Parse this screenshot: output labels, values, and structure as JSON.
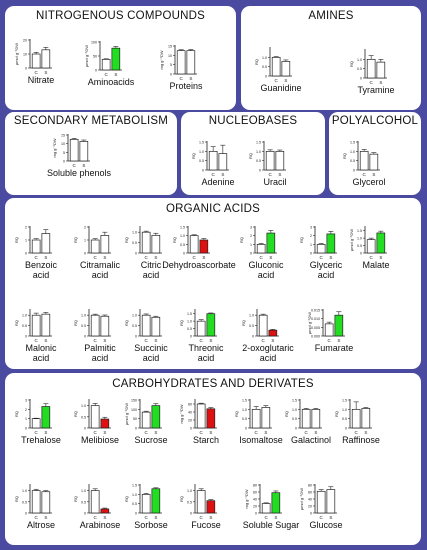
{
  "sections": [
    {
      "id": "nitro",
      "title": "NITROGENOUS COMPOUNDS"
    },
    {
      "id": "amines",
      "title": "AMINES"
    },
    {
      "id": "secondary",
      "title": "SECONDARY METABOLISM"
    },
    {
      "id": "nucleo",
      "title": "NUCLEOBASES"
    },
    {
      "id": "polyal",
      "title": "POLYALCOHOL"
    },
    {
      "id": "organic",
      "title": "ORGANIC ACIDS"
    },
    {
      "id": "carbo",
      "title": "CARBOHYDRATES AND DERIVATES"
    }
  ],
  "colors": {
    "control": "#ffffff",
    "increase": "#22dd22",
    "decrease": "#dd1111",
    "background": "#4a4aa0"
  },
  "chart_data": [
    {
      "type": "bar",
      "title": "Nitrate",
      "ylabel": "μmol g⁻¹DW",
      "categories": [
        "C",
        "S"
      ],
      "values": [
        10,
        13
      ],
      "errors": [
        1.2,
        1.8
      ],
      "colors": [
        "control",
        "control"
      ],
      "yticks": [
        "0",
        "10",
        "20"
      ],
      "ylim": [
        0,
        20
      ],
      "section": "nitro"
    },
    {
      "type": "bar",
      "title": "Aminoacids",
      "ylabel": "μmol g⁻¹DW",
      "categories": [
        "C",
        "S"
      ],
      "values": [
        38,
        78
      ],
      "errors": [
        2,
        6
      ],
      "colors": [
        "control",
        "increase"
      ],
      "yticks": [
        "0",
        "50",
        "100"
      ],
      "ylim": [
        0,
        100
      ],
      "section": "nitro"
    },
    {
      "type": "bar",
      "title": "Proteins",
      "ylabel": "mg g⁻¹DW",
      "categories": [
        "C",
        "S"
      ],
      "values": [
        12.5,
        12.5
      ],
      "errors": [
        0.5,
        0.6
      ],
      "colors": [
        "control",
        "control"
      ],
      "yticks": [
        "0",
        "5",
        "10",
        "15"
      ],
      "ylim": [
        0,
        15
      ],
      "section": "nitro"
    },
    {
      "type": "bar",
      "title": "Guanidine",
      "ylabel": "RQ",
      "categories": [
        "C",
        "S"
      ],
      "values": [
        1.0,
        0.78
      ],
      "errors": [
        0.04,
        0.08
      ],
      "colors": [
        "control",
        "control"
      ],
      "yticks": [
        "0",
        "0.5",
        "1.0"
      ],
      "ylim": [
        0,
        1.5
      ],
      "section": "amines"
    },
    {
      "type": "bar",
      "title": "Tyramine",
      "ylabel": "RQ",
      "categories": [
        "C",
        "S"
      ],
      "values": [
        1.0,
        0.85
      ],
      "errors": [
        0.2,
        0.15
      ],
      "colors": [
        "control",
        "control"
      ],
      "yticks": [
        "0",
        "0.5",
        "1.0"
      ],
      "ylim": [
        0,
        1.5
      ],
      "section": "amines"
    },
    {
      "type": "bar",
      "title": "Soluble phenols",
      "ylabel": "mg g⁻¹DW",
      "categories": [
        "C",
        "S"
      ],
      "values": [
        12.5,
        11.3
      ],
      "errors": [
        0.6,
        0.8
      ],
      "colors": [
        "control",
        "control"
      ],
      "yticks": [
        "0",
        "5",
        "10",
        "15"
      ],
      "ylim": [
        0,
        15
      ],
      "section": "secondary"
    },
    {
      "type": "bar",
      "title": "Adenine",
      "ylabel": "RQ",
      "categories": [
        "C",
        "S"
      ],
      "values": [
        1.0,
        0.88
      ],
      "errors": [
        0.25,
        0.45
      ],
      "colors": [
        "control",
        "control"
      ],
      "yticks": [
        "0",
        "0.5",
        "1.0",
        "1.5"
      ],
      "ylim": [
        0,
        1.5
      ],
      "section": "nucleo"
    },
    {
      "type": "bar",
      "title": "Uracil",
      "ylabel": "RQ",
      "categories": [
        "C",
        "S"
      ],
      "values": [
        1.0,
        1.0
      ],
      "errors": [
        0.08,
        0.07
      ],
      "colors": [
        "control",
        "control"
      ],
      "yticks": [
        "0",
        "0.5",
        "1.0",
        "1.5"
      ],
      "ylim": [
        0,
        1.5
      ],
      "section": "nucleo"
    },
    {
      "type": "bar",
      "title": "Glycerol",
      "ylabel": "RQ",
      "categories": [
        "C",
        "S"
      ],
      "values": [
        1.0,
        0.85
      ],
      "errors": [
        0.1,
        0.08
      ],
      "colors": [
        "control",
        "control"
      ],
      "yticks": [
        "0",
        "0.5",
        "1.0",
        "1.5"
      ],
      "ylim": [
        0,
        1.5
      ],
      "section": "polyal"
    },
    {
      "type": "bar",
      "title": "Benzoic acid",
      "ylabel": "RQ",
      "categories": [
        "C",
        "S"
      ],
      "values": [
        1.0,
        1.5
      ],
      "errors": [
        0.1,
        0.3
      ],
      "colors": [
        "control",
        "control"
      ],
      "yticks": [
        "0",
        "1",
        "2"
      ],
      "ylim": [
        0,
        2
      ],
      "section": "organic"
    },
    {
      "type": "bar",
      "title": "Citramalic acid",
      "ylabel": "RQ",
      "categories": [
        "C",
        "S"
      ],
      "values": [
        1.0,
        1.35
      ],
      "errors": [
        0.1,
        0.25
      ],
      "colors": [
        "control",
        "control"
      ],
      "yticks": [
        "0",
        "1",
        "2"
      ],
      "ylim": [
        0,
        2
      ],
      "section": "organic"
    },
    {
      "type": "bar",
      "title": "Citric acid",
      "ylabel": "RQ",
      "categories": [
        "C",
        "S"
      ],
      "values": [
        1.0,
        0.85
      ],
      "errors": [
        0.05,
        0.1
      ],
      "colors": [
        "control",
        "control"
      ],
      "yticks": [
        "0",
        "0.5",
        "1.0"
      ],
      "ylim": [
        0,
        1.25
      ],
      "section": "organic"
    },
    {
      "type": "bar",
      "title": "Dehydroascorbate",
      "ylabel": "RQ",
      "categories": [
        "C",
        "S"
      ],
      "values": [
        1.0,
        0.75
      ],
      "errors": [
        0.05,
        0.08
      ],
      "colors": [
        "control",
        "decrease"
      ],
      "yticks": [
        "0",
        "0.5",
        "1.0",
        "1.5"
      ],
      "ylim": [
        0,
        1.5
      ],
      "section": "organic"
    },
    {
      "type": "bar",
      "title": "Gluconic acid",
      "ylabel": "RQ",
      "categories": [
        "C",
        "S"
      ],
      "values": [
        1.0,
        2.3
      ],
      "errors": [
        0.1,
        0.3
      ],
      "colors": [
        "control",
        "increase"
      ],
      "yticks": [
        "0",
        "1",
        "2",
        "3"
      ],
      "ylim": [
        0,
        3
      ],
      "section": "organic"
    },
    {
      "type": "bar",
      "title": "Glyceric acid",
      "ylabel": "RQ",
      "categories": [
        "C",
        "S"
      ],
      "values": [
        1.0,
        2.2
      ],
      "errors": [
        0.1,
        0.3
      ],
      "colors": [
        "control",
        "increase"
      ],
      "yticks": [
        "0",
        "1",
        "2",
        "3"
      ],
      "ylim": [
        0,
        3
      ],
      "section": "organic"
    },
    {
      "type": "bar",
      "title": "Malate",
      "ylabel": "μmol g⁻¹DW",
      "categories": [
        "C",
        "S"
      ],
      "values": [
        0.9,
        1.35
      ],
      "errors": [
        0.1,
        0.12
      ],
      "colors": [
        "control",
        "increase"
      ],
      "yticks": [
        "0",
        "0.5",
        "1.0",
        "1.5"
      ],
      "ylim": [
        0,
        1.75
      ],
      "section": "organic"
    },
    {
      "type": "bar",
      "title": "Malonic acid",
      "ylabel": "RQ",
      "categories": [
        "C",
        "S"
      ],
      "values": [
        1.0,
        1.05
      ],
      "errors": [
        0.1,
        0.08
      ],
      "colors": [
        "control",
        "control"
      ],
      "yticks": [
        "0",
        "0.5",
        "1.0"
      ],
      "ylim": [
        0,
        1.25
      ],
      "section": "organic"
    },
    {
      "type": "bar",
      "title": "Palmitic acid",
      "ylabel": "RQ",
      "categories": [
        "C",
        "S"
      ],
      "values": [
        1.0,
        0.95
      ],
      "errors": [
        0.05,
        0.06
      ],
      "colors": [
        "control",
        "control"
      ],
      "yticks": [
        "0",
        "0.5",
        "1.0"
      ],
      "ylim": [
        0,
        1.25
      ],
      "section": "organic"
    },
    {
      "type": "bar",
      "title": "Succinic acid",
      "ylabel": "RQ",
      "categories": [
        "C",
        "S"
      ],
      "values": [
        1.0,
        0.9
      ],
      "errors": [
        0.06,
        0.05
      ],
      "colors": [
        "control",
        "control"
      ],
      "yticks": [
        "0",
        "0.5",
        "1.0"
      ],
      "ylim": [
        0,
        1.25
      ],
      "section": "organic"
    },
    {
      "type": "bar",
      "title": "Threonic acid",
      "ylabel": "RQ",
      "categories": [
        "C",
        "S"
      ],
      "values": [
        1.0,
        1.5
      ],
      "errors": [
        0.1,
        0.05
      ],
      "colors": [
        "control",
        "increase"
      ],
      "yticks": [
        "0",
        "0.5",
        "1.0",
        "1.5"
      ],
      "ylim": [
        0,
        1.75
      ],
      "section": "organic"
    },
    {
      "type": "bar",
      "title": "2-oxoglutaric acid",
      "ylabel": "RQ",
      "categories": [
        "C",
        "S"
      ],
      "values": [
        1.0,
        0.28
      ],
      "errors": [
        0.05,
        0.04
      ],
      "colors": [
        "control",
        "decrease"
      ],
      "yticks": [
        "0",
        "0.5",
        "1.0"
      ],
      "ylim": [
        0,
        1.25
      ],
      "section": "organic"
    },
    {
      "type": "bar",
      "title": "Fumarate",
      "ylabel": "μmol g⁻¹DW",
      "categories": [
        "C",
        "S"
      ],
      "values": [
        0.007,
        0.012
      ],
      "errors": [
        0.001,
        0.002
      ],
      "colors": [
        "control",
        "increase"
      ],
      "yticks": [
        "0.000",
        "0.005",
        "0.010",
        "0.015"
      ],
      "ylim": [
        0,
        0.015
      ],
      "section": "organic"
    },
    {
      "type": "bar",
      "title": "Trehalose",
      "ylabel": "RQ",
      "categories": [
        "C",
        "S"
      ],
      "values": [
        1.0,
        2.3
      ],
      "errors": [
        0.05,
        0.3
      ],
      "colors": [
        "control",
        "increase"
      ],
      "yticks": [
        "0",
        "1",
        "2",
        "3"
      ],
      "ylim": [
        0,
        3
      ],
      "section": "carbo"
    },
    {
      "type": "bar",
      "title": "Melibiose",
      "ylabel": "RQ",
      "categories": [
        "C",
        "S"
      ],
      "values": [
        1.0,
        0.4
      ],
      "errors": [
        0.1,
        0.08
      ],
      "colors": [
        "control",
        "decrease"
      ],
      "yticks": [
        "0",
        "0.5",
        "1.0"
      ],
      "ylim": [
        0,
        1.25
      ],
      "section": "carbo"
    },
    {
      "type": "bar",
      "title": "Sucrose",
      "ylabel": "μmol g⁻¹DW",
      "categories": [
        "C",
        "S"
      ],
      "values": [
        85,
        120
      ],
      "errors": [
        5,
        10
      ],
      "colors": [
        "control",
        "increase"
      ],
      "yticks": [
        "0",
        "50",
        "100",
        "150"
      ],
      "ylim": [
        0,
        150
      ],
      "section": "carbo"
    },
    {
      "type": "bar",
      "title": "Starch",
      "ylabel": "mg g⁻¹DW",
      "categories": [
        "C",
        "S"
      ],
      "values": [
        60,
        48
      ],
      "errors": [
        2,
        3
      ],
      "colors": [
        "control",
        "decrease"
      ],
      "yticks": [
        "0",
        "20",
        "40",
        "60"
      ],
      "ylim": [
        0,
        70
      ],
      "section": "carbo"
    },
    {
      "type": "bar",
      "title": "Isomaltose",
      "ylabel": "RQ",
      "categories": [
        "C",
        "S"
      ],
      "values": [
        1.0,
        1.1
      ],
      "errors": [
        0.15,
        0.1
      ],
      "colors": [
        "control",
        "control"
      ],
      "yticks": [
        "0",
        "0.5",
        "1.0",
        "1.5"
      ],
      "ylim": [
        0,
        1.5
      ],
      "section": "carbo"
    },
    {
      "type": "bar",
      "title": "Galactinol",
      "ylabel": "RQ",
      "categories": [
        "C",
        "S"
      ],
      "values": [
        1.0,
        1.0
      ],
      "errors": [
        0.05,
        0.05
      ],
      "colors": [
        "control",
        "control"
      ],
      "yticks": [
        "0",
        "0.5",
        "1.0",
        "1.5"
      ],
      "ylim": [
        0,
        1.5
      ],
      "section": "carbo"
    },
    {
      "type": "bar",
      "title": "Raffinose",
      "ylabel": "RQ",
      "categories": [
        "C",
        "S"
      ],
      "values": [
        1.0,
        1.05
      ],
      "errors": [
        0.4,
        0.05
      ],
      "colors": [
        "control",
        "control"
      ],
      "yticks": [
        "0",
        "0.5",
        "1.0",
        "1.5"
      ],
      "ylim": [
        0,
        1.5
      ],
      "section": "carbo"
    },
    {
      "type": "bar",
      "title": "Altrose",
      "ylabel": "RQ",
      "categories": [
        "C",
        "S"
      ],
      "values": [
        1.0,
        0.95
      ],
      "errors": [
        0.06,
        0.05
      ],
      "colors": [
        "control",
        "control"
      ],
      "yticks": [
        "0",
        "0.5",
        "1.0"
      ],
      "ylim": [
        0,
        1.25
      ],
      "section": "carbo"
    },
    {
      "type": "bar",
      "title": "Arabinose",
      "ylabel": "RQ",
      "categories": [
        "C",
        "S"
      ],
      "values": [
        1.0,
        0.18
      ],
      "errors": [
        0.08,
        0.04
      ],
      "colors": [
        "control",
        "decrease"
      ],
      "yticks": [
        "0",
        "0.5",
        "1.0"
      ],
      "ylim": [
        0,
        1.25
      ],
      "section": "carbo"
    },
    {
      "type": "bar",
      "title": "Sorbose",
      "ylabel": "RQ",
      "categories": [
        "C",
        "S"
      ],
      "values": [
        1.0,
        1.3
      ],
      "errors": [
        0.05,
        0.05
      ],
      "colors": [
        "control",
        "increase"
      ],
      "yticks": [
        "0",
        "0.5",
        "1.0",
        "1.5"
      ],
      "ylim": [
        0,
        1.5
      ],
      "section": "carbo"
    },
    {
      "type": "bar",
      "title": "Fucose",
      "ylabel": "RQ",
      "categories": [
        "C",
        "S"
      ],
      "values": [
        1.0,
        0.55
      ],
      "errors": [
        0.08,
        0.05
      ],
      "colors": [
        "control",
        "decrease"
      ],
      "yticks": [
        "0",
        "0.5",
        "1.0"
      ],
      "ylim": [
        0,
        1.25
      ],
      "section": "carbo"
    },
    {
      "type": "bar",
      "title": "Soluble Sugar",
      "ylabel": "mg g⁻¹DW",
      "categories": [
        "C",
        "S"
      ],
      "values": [
        27,
        58
      ],
      "errors": [
        2,
        5
      ],
      "colors": [
        "control",
        "increase"
      ],
      "yticks": [
        "0",
        "20",
        "40",
        "60",
        "80"
      ],
      "ylim": [
        0,
        80
      ],
      "section": "carbo"
    },
    {
      "type": "bar",
      "title": "Glucose",
      "ylabel": "μmol g⁻¹DW",
      "categories": [
        "C",
        "S"
      ],
      "values": [
        62,
        67
      ],
      "errors": [
        5,
        8
      ],
      "colors": [
        "control",
        "control"
      ],
      "yticks": [
        "0",
        "20",
        "40",
        "60",
        "80"
      ],
      "ylim": [
        0,
        80
      ],
      "section": "carbo"
    }
  ]
}
